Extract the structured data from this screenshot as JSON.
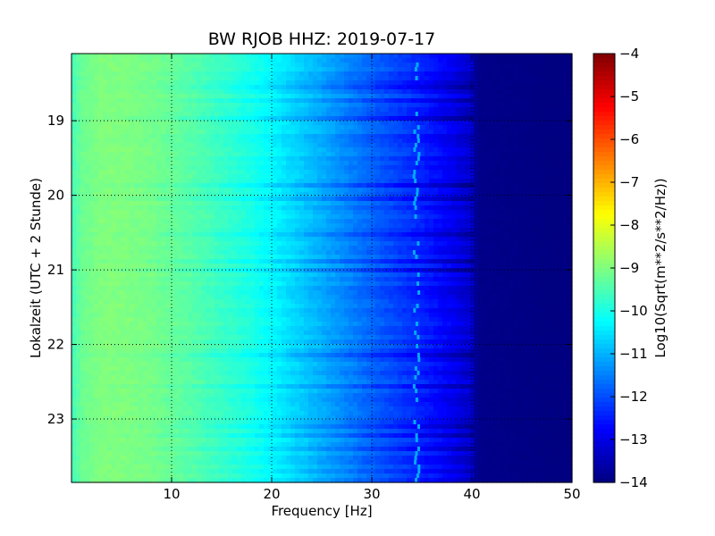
{
  "chart_data": {
    "type": "heatmap",
    "title": "BW RJOB HHZ: 2019-07-17",
    "xlabel": "Frequency [Hz]",
    "ylabel": "Lokalzeit (UTC + 2 Stunde)",
    "colorbar_label": "Log10(Sqrt(m**2/s**2/Hz))",
    "x_range": [
      0,
      50
    ],
    "y_range": [
      18.1,
      23.85
    ],
    "y_inverted": true,
    "x_ticks": [
      10,
      20,
      30,
      40,
      50
    ],
    "y_ticks": [
      19,
      20,
      21,
      22,
      23
    ],
    "colorbar_range": [
      -14,
      -4
    ],
    "colorbar_ticks": [
      -4,
      -5,
      -6,
      -7,
      -8,
      -9,
      -10,
      -11,
      -12,
      -13,
      -14
    ],
    "colormap": "jet",
    "grid": true,
    "spectral_profile": {
      "frequency_hz": [
        0,
        1,
        3,
        5,
        8,
        10,
        12,
        14,
        16,
        18,
        20,
        22,
        24,
        26,
        28,
        30,
        32,
        34,
        36,
        38,
        39,
        40,
        40.5,
        50
      ],
      "log_amplitude": [
        -9.6,
        -9.2,
        -9.0,
        -9.0,
        -9.1,
        -9.25,
        -9.4,
        -9.6,
        -9.8,
        -10.0,
        -10.3,
        -10.6,
        -10.9,
        -11.2,
        -11.5,
        -11.8,
        -12.05,
        -12.3,
        -12.6,
        -12.9,
        -13.1,
        -13.3,
        -13.9,
        -14.0
      ]
    },
    "tonal_line_hz": 34.5
  }
}
